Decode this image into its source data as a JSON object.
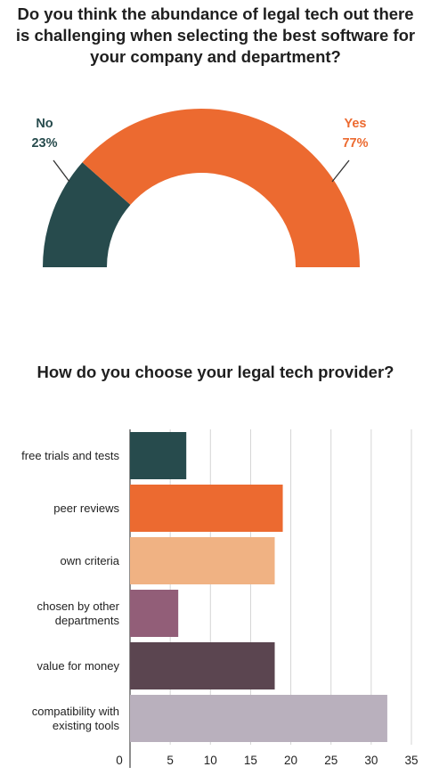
{
  "colors": {
    "teal": "#274b4d",
    "orange": "#ec6a30",
    "peach": "#f0b283",
    "mauve": "#925e78",
    "plum": "#5b4550",
    "lavender": "#b9b0bd",
    "grid": "#d4d4d4"
  },
  "chart_data": [
    {
      "type": "pie",
      "variant": "half-donut",
      "title_lines": [
        "Do you think the abundance of legal tech out there",
        "is challenging when selecting the best software for",
        "your company and department?"
      ],
      "slices": [
        {
          "name": "No",
          "value": 23,
          "label": "23%",
          "color": "#274b4d"
        },
        {
          "name": "Yes",
          "value": 77,
          "label": "77%",
          "color": "#ec6a30"
        }
      ]
    },
    {
      "type": "bar",
      "orientation": "horizontal",
      "title": "How do you choose your legal tech provider?",
      "categories": [
        [
          "free trials and tests"
        ],
        [
          "peer reviews"
        ],
        [
          "own criteria"
        ],
        [
          "chosen by other",
          "departments"
        ],
        [
          "value for money"
        ],
        [
          "compatibility with",
          "existing tools"
        ]
      ],
      "values": [
        7,
        19,
        18,
        6,
        18,
        32
      ],
      "colors": [
        "#274b4d",
        "#ec6a30",
        "#f0b283",
        "#925e78",
        "#5b4550",
        "#b9b0bd"
      ],
      "xlim": [
        0,
        35
      ],
      "xticks": [
        0,
        5,
        10,
        15,
        20,
        25,
        30,
        35
      ],
      "grid": true
    }
  ]
}
